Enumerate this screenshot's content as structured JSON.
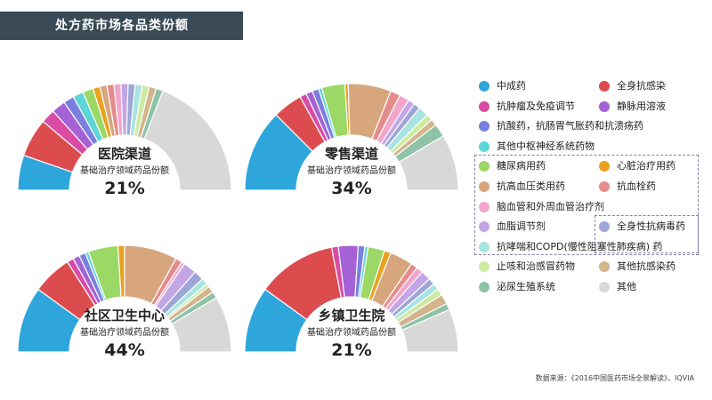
{
  "title": "处方药市场各品类份额",
  "source": "数据来源：《2016中国医药市场全景解读》，IQVIA",
  "legend": [
    {
      "label": "中成药",
      "color": "#2ea6dc",
      "icon": "circle-icon"
    },
    {
      "label": "全身抗感染",
      "color": "#dc4c4f",
      "icon": "circle-icon"
    },
    {
      "label": "抗肿瘤及免疫调节",
      "color": "#d94ba4",
      "icon": "circle-icon"
    },
    {
      "label": "静脉用溶液",
      "color": "#a561d6",
      "icon": "circle-icon"
    },
    {
      "label": "抗酸药，抗肠胃气胀药和抗溃疡药",
      "color": "#7b7fe0",
      "icon": "circle-icon"
    },
    {
      "label": "其他中枢神经系统药物",
      "color": "#5dd6d8",
      "icon": "circle-icon"
    },
    {
      "label": "糖尿病用药",
      "color": "#9bd865",
      "icon": "circle-icon"
    },
    {
      "label": "心脏治疗用药",
      "color": "#e8a21f",
      "icon": "circle-icon"
    },
    {
      "label": "抗高血压类用药",
      "color": "#d7a67d",
      "icon": "circle-icon"
    },
    {
      "label": "抗血栓药",
      "color": "#e48b8b",
      "icon": "circle-icon"
    },
    {
      "label": "脑血管和外周血管治疗剂",
      "color": "#f2a6cc",
      "icon": "circle-icon"
    },
    {
      "label": "血脂调节剂",
      "color": "#c3a6e5",
      "icon": "circle-icon"
    },
    {
      "label": "全身性抗病毒药",
      "color": "#9ea6d8",
      "icon": "circle-icon"
    },
    {
      "label": "抗哮喘和COPD(慢性阻塞性肺疾病) 药",
      "color": "#a8e4e1",
      "icon": "circle-icon"
    },
    {
      "label": "止咳和治感冒药物",
      "color": "#cdeaa1",
      "icon": "circle-icon"
    },
    {
      "label": "其他抗感染药",
      "color": "#d2b58c",
      "icon": "circle-icon"
    },
    {
      "label": "泌尿生殖系统",
      "color": "#8fc3a8",
      "icon": "circle-icon"
    },
    {
      "label": "其他",
      "color": "#d8d8d8",
      "icon": "circle-icon"
    }
  ],
  "chart_data": [
    {
      "type": "pie",
      "style": "semi-donut",
      "name": "医院渠道",
      "subtitle": "基础治疗领域药品份额",
      "highlight": "21%",
      "values": [
        10,
        11,
        4,
        4,
        3,
        3,
        3,
        2,
        2,
        2,
        2,
        2,
        2,
        2,
        2,
        2,
        2,
        36
      ]
    },
    {
      "type": "pie",
      "style": "semi-donut",
      "name": "零售渠道",
      "subtitle": "基础治疗领域药品份额",
      "highlight": "34%",
      "values": [
        25,
        9,
        2,
        2,
        2,
        1,
        7,
        1,
        13,
        3,
        3,
        2,
        2,
        3,
        2,
        2,
        4,
        17
      ]
    },
    {
      "type": "pie",
      "style": "semi-donut",
      "name": "社区卫生中心",
      "subtitle": "基础治疗领域药品份额",
      "highlight": "44%",
      "values": [
        20,
        12,
        2,
        2,
        2,
        1,
        9,
        2,
        16,
        2,
        1,
        4,
        3,
        2,
        1,
        2,
        2,
        17
      ]
    },
    {
      "type": "pie",
      "style": "semi-donut",
      "name": "乡镇卫生院",
      "subtitle": "基础治疗领域药品份额",
      "highlight": "21%",
      "values": [
        20,
        24,
        2,
        6,
        2,
        1,
        5,
        2,
        7,
        2,
        2,
        3,
        2,
        2,
        2,
        3,
        2,
        13
      ]
    }
  ]
}
